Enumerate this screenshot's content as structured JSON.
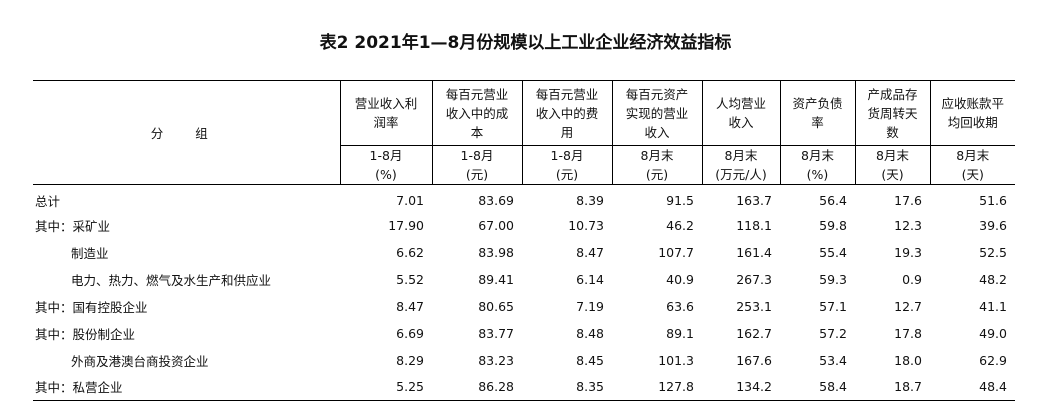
{
  "title": "表2  2021年1—8月份规模以上工业企业经济效益指标",
  "table": {
    "group_header": "分 组",
    "columns": [
      {
        "name": "营业收入利润率",
        "period": "1-8月",
        "unit": "(%)"
      },
      {
        "name": "每百元营业收入中的成本",
        "period": "1-8月",
        "unit": "(元)"
      },
      {
        "name": "每百元营业收入中的费用",
        "period": "1-8月",
        "unit": "(元)"
      },
      {
        "name": "每百元资产实现的营业收入",
        "period": "8月末",
        "unit": "(元)"
      },
      {
        "name": "人均营业收入",
        "period": "8月末",
        "unit": "(万元/人)"
      },
      {
        "name": "资产负债率",
        "period": "8月末",
        "unit": "(%)"
      },
      {
        "name": "产成品存货周转天数",
        "period": "8月末",
        "unit": "(天)"
      },
      {
        "name": "应收账款平均回收期",
        "period": "8月末",
        "unit": "(天)"
      }
    ],
    "rows": [
      [
        "总计",
        "7.01",
        "83.69",
        "8.39",
        "91.5",
        "163.7",
        "56.4",
        "17.6",
        "51.6"
      ],
      [
        "其中：采矿业",
        "17.90",
        "67.00",
        "10.73",
        "46.2",
        "118.1",
        "59.8",
        "12.3",
        "39.6"
      ],
      [
        "制造业",
        "6.62",
        "83.98",
        "8.47",
        "107.7",
        "161.4",
        "55.4",
        "19.3",
        "52.5"
      ],
      [
        "电力、热力、燃气及水生产和供应业",
        "5.52",
        "89.41",
        "6.14",
        "40.9",
        "267.3",
        "59.3",
        "0.9",
        "48.2"
      ],
      [
        "其中：国有控股企业",
        "8.47",
        "80.65",
        "7.19",
        "63.6",
        "253.1",
        "57.1",
        "12.7",
        "41.1"
      ],
      [
        "其中：股份制企业",
        "6.69",
        "83.77",
        "8.48",
        "89.1",
        "162.7",
        "57.2",
        "17.8",
        "49.0"
      ],
      [
        "外商及港澳台商投资企业",
        "8.29",
        "83.23",
        "8.45",
        "101.3",
        "167.6",
        "53.4",
        "18.0",
        "62.9"
      ],
      [
        "其中：私营企业",
        "5.25",
        "86.28",
        "8.35",
        "127.8",
        "134.2",
        "58.4",
        "18.7",
        "48.4"
      ]
    ]
  }
}
